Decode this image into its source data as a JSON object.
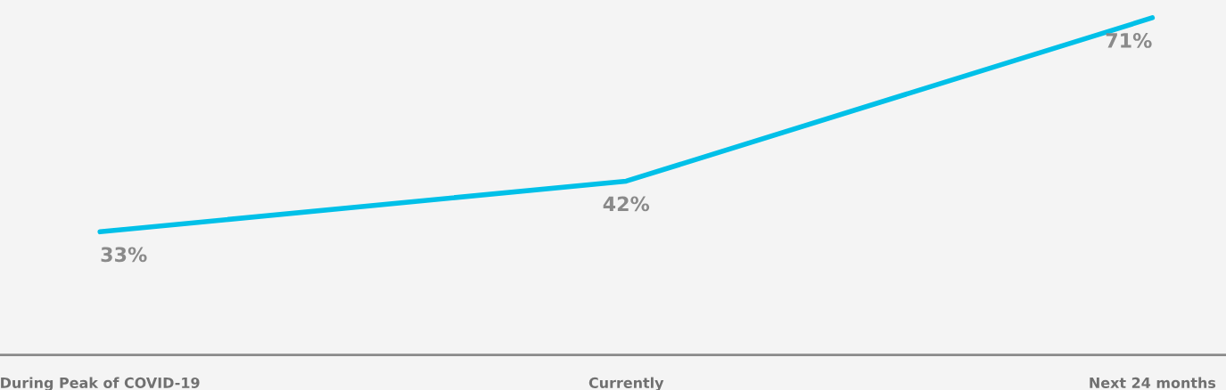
{
  "chart_data": {
    "type": "line",
    "categories": [
      "During Peak of COVID-19",
      "Currently",
      "Next 24 months"
    ],
    "series": [
      {
        "color": "#00c0e8",
        "values": [
          33,
          42,
          71
        ],
        "value_labels": [
          "33%",
          "42%",
          "71%"
        ]
      }
    ],
    "grid": false,
    "legend": false,
    "marker": "none",
    "line_style": "solid"
  }
}
